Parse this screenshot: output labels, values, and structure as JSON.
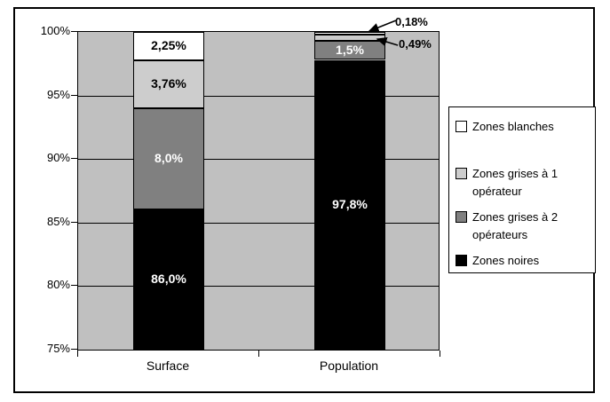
{
  "chart_data": {
    "type": "bar",
    "stacked": true,
    "categories": [
      "Surface",
      "Population"
    ],
    "series": [
      {
        "name": "Zones noires",
        "color": "#000000",
        "values": [
          86.0,
          97.8
        ],
        "labels": [
          "86,0%",
          "97,8%"
        ],
        "label_colors": [
          "#ffffff",
          "#ffffff"
        ]
      },
      {
        "name": "Zones grises à 2 opérateurs",
        "color": "#808080",
        "values": [
          8.0,
          1.5
        ],
        "labels": [
          "8,0%",
          "1,5%"
        ],
        "label_colors": [
          "#ffffff",
          "#ffffff"
        ]
      },
      {
        "name": "Zones grises à 1 opérateur",
        "color": "#cdcdcd",
        "values": [
          3.76,
          0.49
        ],
        "labels": [
          "3,76%",
          null
        ],
        "label_colors": [
          "#000000",
          null
        ]
      },
      {
        "name": "Zones blanches",
        "color": "#ffffff",
        "values": [
          2.25,
          0.18
        ],
        "labels": [
          "2,25%",
          null
        ],
        "label_colors": [
          "#000000",
          null
        ]
      }
    ],
    "ylim": [
      75,
      100
    ],
    "ytick_step": 5,
    "yticks": [
      "100%",
      "95%",
      "90%",
      "85%",
      "80%",
      "75%"
    ],
    "grid": true,
    "plot_background": "#c0c0c0",
    "legend_position": "right",
    "legend_order": [
      "Zones blanches",
      "Zones grises à 1 opérateur",
      "Zones grises à 2 opérateurs",
      "Zones noires"
    ],
    "annotations": [
      {
        "text": "0,18%",
        "target_series": "Zones blanches",
        "target_category": "Population"
      },
      {
        "text": "0,49%",
        "target_series": "Zones grises à 1 opérateur",
        "target_category": "Population"
      }
    ]
  }
}
